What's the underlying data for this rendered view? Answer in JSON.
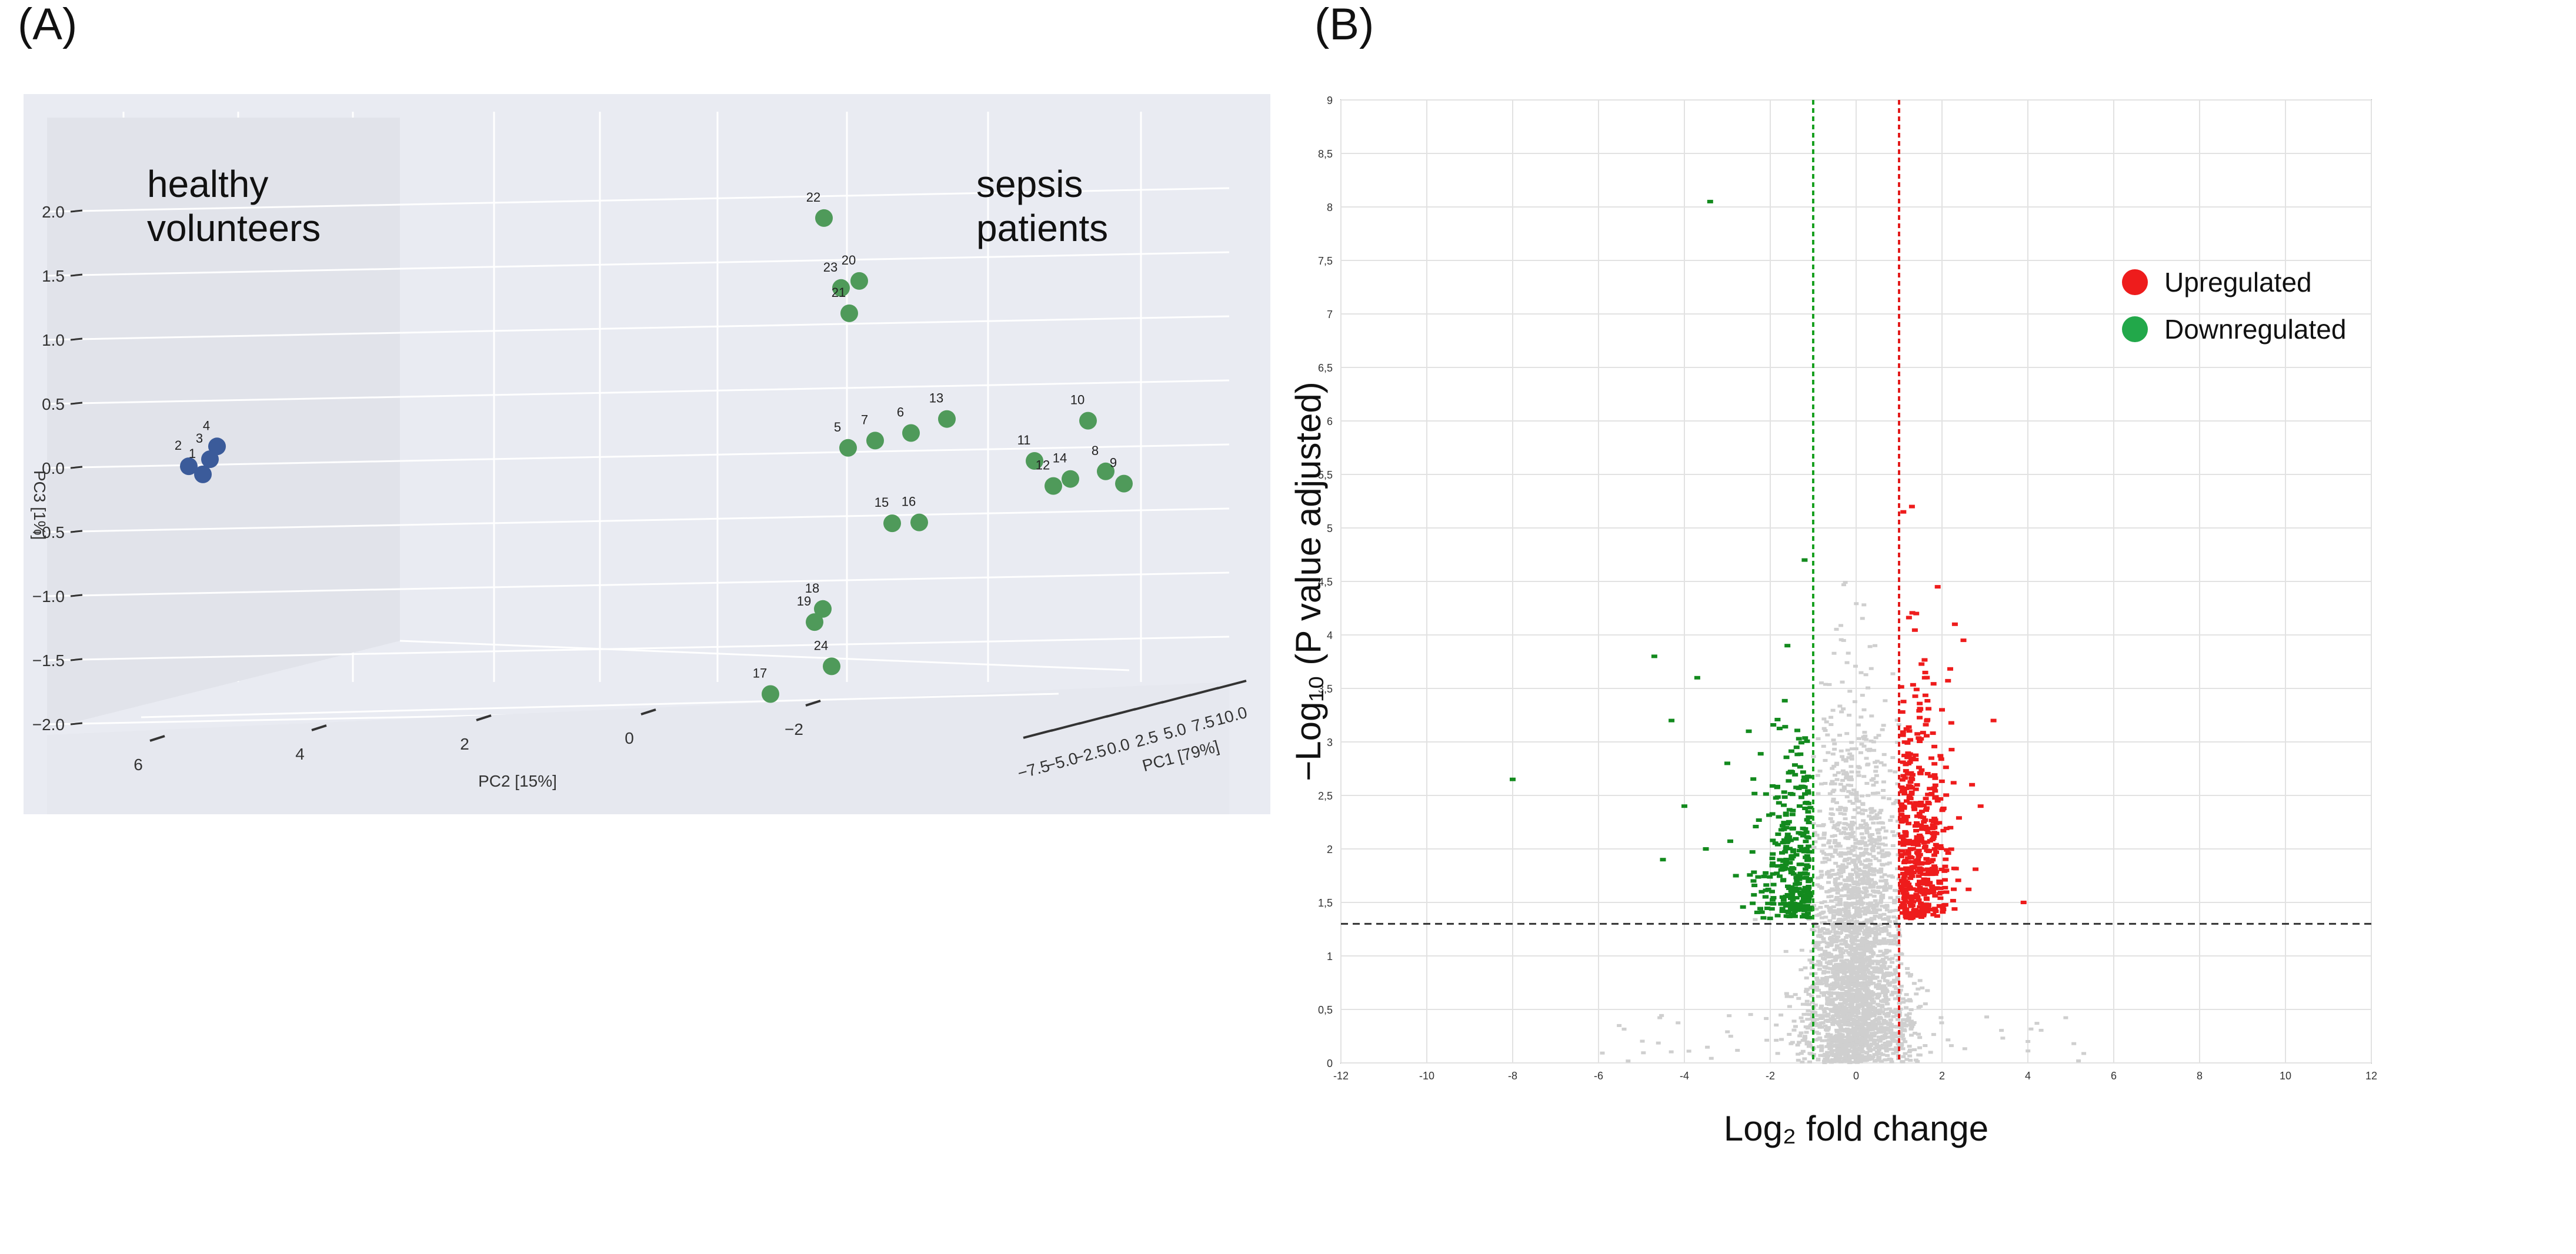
{
  "panels": {
    "a": "(A)",
    "b": "(B)"
  },
  "chart_data": [
    {
      "type": "scatter",
      "subtype": "3d-pca",
      "xlabel": "PC1 [79%]",
      "ylabel": "PC2 [15%]",
      "zlabel": "PC3 [1%]",
      "x_ticks": [
        "−7.5",
        "−5.0",
        "−2.5",
        "0.0",
        "2.5",
        "5.0",
        "7.5",
        "10.0"
      ],
      "y_ticks": [
        "6",
        "4",
        "2",
        "0",
        "−2"
      ],
      "z_ticks": [
        "2.0",
        "1.5",
        "1.0",
        "0.5",
        "0.0",
        "−0.5",
        "−1.0",
        "−1.5",
        "−2.0"
      ],
      "annotations": [
        {
          "name": "healthy",
          "lines": [
            "healthy",
            "volunteers"
          ]
        },
        {
          "name": "sepsis",
          "lines": [
            "sepsis",
            "patients"
          ]
        }
      ],
      "series": [
        {
          "name": "healthy volunteers",
          "color": "#3b5b9a",
          "labels": [
            "2",
            "4",
            "3",
            "1"
          ],
          "points": [
            [
              -7.6,
              5.2,
              0.05
            ],
            [
              -7.2,
              4.9,
              0.15
            ],
            [
              -7.3,
              4.9,
              0.05
            ],
            [
              -7.4,
              5.0,
              -0.05
            ]
          ]
        },
        {
          "name": "sepsis patients",
          "color": "#4f9a5a",
          "labels": [
            "22",
            "23",
            "20",
            "21",
            "5",
            "7",
            "6",
            "13",
            "11",
            "10",
            "12",
            "14",
            "8",
            "9",
            "15",
            "16",
            "18",
            "19",
            "24",
            "17"
          ],
          "points": [
            [
              6.0,
              -1.5,
              1.95
            ],
            [
              6.2,
              -1.6,
              1.4
            ],
            [
              6.4,
              -1.5,
              1.45
            ],
            [
              6.3,
              -1.7,
              1.2
            ],
            [
              6.3,
              -1.9,
              0.15
            ],
            [
              6.6,
              -1.8,
              0.2
            ],
            [
              7.0,
              -1.7,
              0.25
            ],
            [
              7.4,
              -1.6,
              0.35
            ],
            [
              8.4,
              -1.7,
              0.0
            ],
            [
              9.0,
              -1.6,
              0.3
            ],
            [
              8.6,
              -1.5,
              -0.2
            ],
            [
              8.8,
              -1.6,
              -0.15
            ],
            [
              9.2,
              -1.6,
              -0.1
            ],
            [
              9.4,
              -1.5,
              -0.2
            ],
            [
              6.8,
              -1.9,
              -0.45
            ],
            [
              7.1,
              -1.8,
              -0.45
            ],
            [
              6.0,
              -1.7,
              -1.1
            ],
            [
              5.9,
              -1.6,
              -1.2
            ],
            [
              6.1,
              -1.7,
              -1.55
            ],
            [
              5.4,
              -1.6,
              -1.75
            ]
          ]
        }
      ]
    },
    {
      "type": "scatter",
      "subtype": "volcano",
      "xlabel": "Log₂ fold change",
      "ylabel": "−Log₁₀ (P value adjusted)",
      "xlim": [
        -12,
        12
      ],
      "ylim": [
        0,
        9
      ],
      "x_ticks": [
        "-12",
        "-10",
        "-8",
        "-6",
        "-4",
        "-2",
        "0",
        "2",
        "4",
        "6",
        "8",
        "10",
        "12"
      ],
      "y_ticks": [
        "0",
        "0.5",
        "1",
        "1.5",
        "2",
        "2.5",
        "3",
        "3.5",
        "4",
        "4.5",
        "5",
        "5.5",
        "6",
        "6.5",
        "7",
        "7.5",
        "8",
        "8.5",
        "9"
      ],
      "thresholds": {
        "log2fc_down": -1,
        "log2fc_up": 1,
        "neg_log10_p": 1.3
      },
      "legend": [
        {
          "label": "Upregulated",
          "color": "#ee1c1c"
        },
        {
          "label": "Downregulated",
          "color": "#22a84a"
        }
      ],
      "highlight_points": {
        "up": [
          [
            1.3,
            5.2
          ],
          [
            1.1,
            5.15
          ],
          [
            1.9,
            4.45
          ],
          [
            2.5,
            3.95
          ],
          [
            3.2,
            3.2
          ],
          [
            3.9,
            1.5
          ],
          [
            2.3,
            4.1
          ],
          [
            1.6,
            3.6
          ],
          [
            2.0,
            3.3
          ],
          [
            1.4,
            4.2
          ],
          [
            2.7,
            2.6
          ],
          [
            1.8,
            2.1
          ],
          [
            2.1,
            1.8
          ],
          [
            1.2,
            2.7
          ],
          [
            2.9,
            2.4
          ],
          [
            1.5,
            1.6
          ]
        ],
        "down": [
          [
            -3.4,
            8.05
          ],
          [
            -8.0,
            2.65
          ],
          [
            -4.7,
            3.8
          ],
          [
            -4.3,
            3.2
          ],
          [
            -3.7,
            3.6
          ],
          [
            -1.6,
            3.9
          ],
          [
            -1.2,
            4.7
          ],
          [
            -4.0,
            2.4
          ],
          [
            -3.5,
            2.0
          ],
          [
            -2.8,
            1.75
          ],
          [
            -2.2,
            1.6
          ],
          [
            -4.5,
            1.9
          ],
          [
            -3.0,
            2.8
          ],
          [
            -2.5,
            3.1
          ],
          [
            -1.8,
            2.3
          ]
        ]
      },
      "background_color": "#cfcfcf"
    }
  ]
}
